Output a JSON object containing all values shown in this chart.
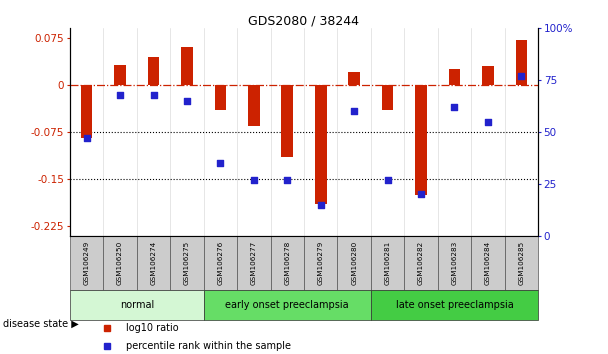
{
  "title": "GDS2080 / 38244",
  "samples": [
    "GSM106249",
    "GSM106250",
    "GSM106274",
    "GSM106275",
    "GSM106276",
    "GSM106277",
    "GSM106278",
    "GSM106279",
    "GSM106280",
    "GSM106281",
    "GSM106282",
    "GSM106283",
    "GSM106284",
    "GSM106285"
  ],
  "log10_ratio": [
    -0.085,
    0.032,
    0.045,
    0.06,
    -0.04,
    -0.065,
    -0.115,
    -0.19,
    0.02,
    -0.04,
    -0.175,
    0.025,
    0.03,
    0.072
  ],
  "percentile_rank": [
    47,
    68,
    68,
    65,
    35,
    27,
    27,
    15,
    60,
    27,
    20,
    62,
    55,
    77
  ],
  "bar_color": "#cc2200",
  "dot_color": "#2222cc",
  "dotted_lines": [
    -0.075,
    -0.15
  ],
  "right_axis_ticks": [
    0,
    25,
    50,
    75,
    100
  ],
  "ylim_left": [
    -0.24,
    0.09
  ],
  "ylim_right": [
    0,
    100
  ],
  "groups": [
    {
      "label": "normal",
      "start": 0,
      "end": 4,
      "color": "#d4f7d4"
    },
    {
      "label": "early onset preeclampsia",
      "start": 4,
      "end": 9,
      "color": "#66dd66"
    },
    {
      "label": "late onset preeclampsia",
      "start": 9,
      "end": 14,
      "color": "#44cc44"
    }
  ],
  "disease_state_label": "disease state",
  "legend_items": [
    {
      "label": "log10 ratio",
      "color": "#cc2200"
    },
    {
      "label": "percentile rank within the sample",
      "color": "#2222cc"
    }
  ],
  "left_yticks": [
    0.075,
    0,
    -0.075,
    -0.15,
    -0.225
  ],
  "left_ytick_labels": [
    "0.075",
    "0",
    "-0.075",
    "-0.15",
    "-0.225"
  ]
}
